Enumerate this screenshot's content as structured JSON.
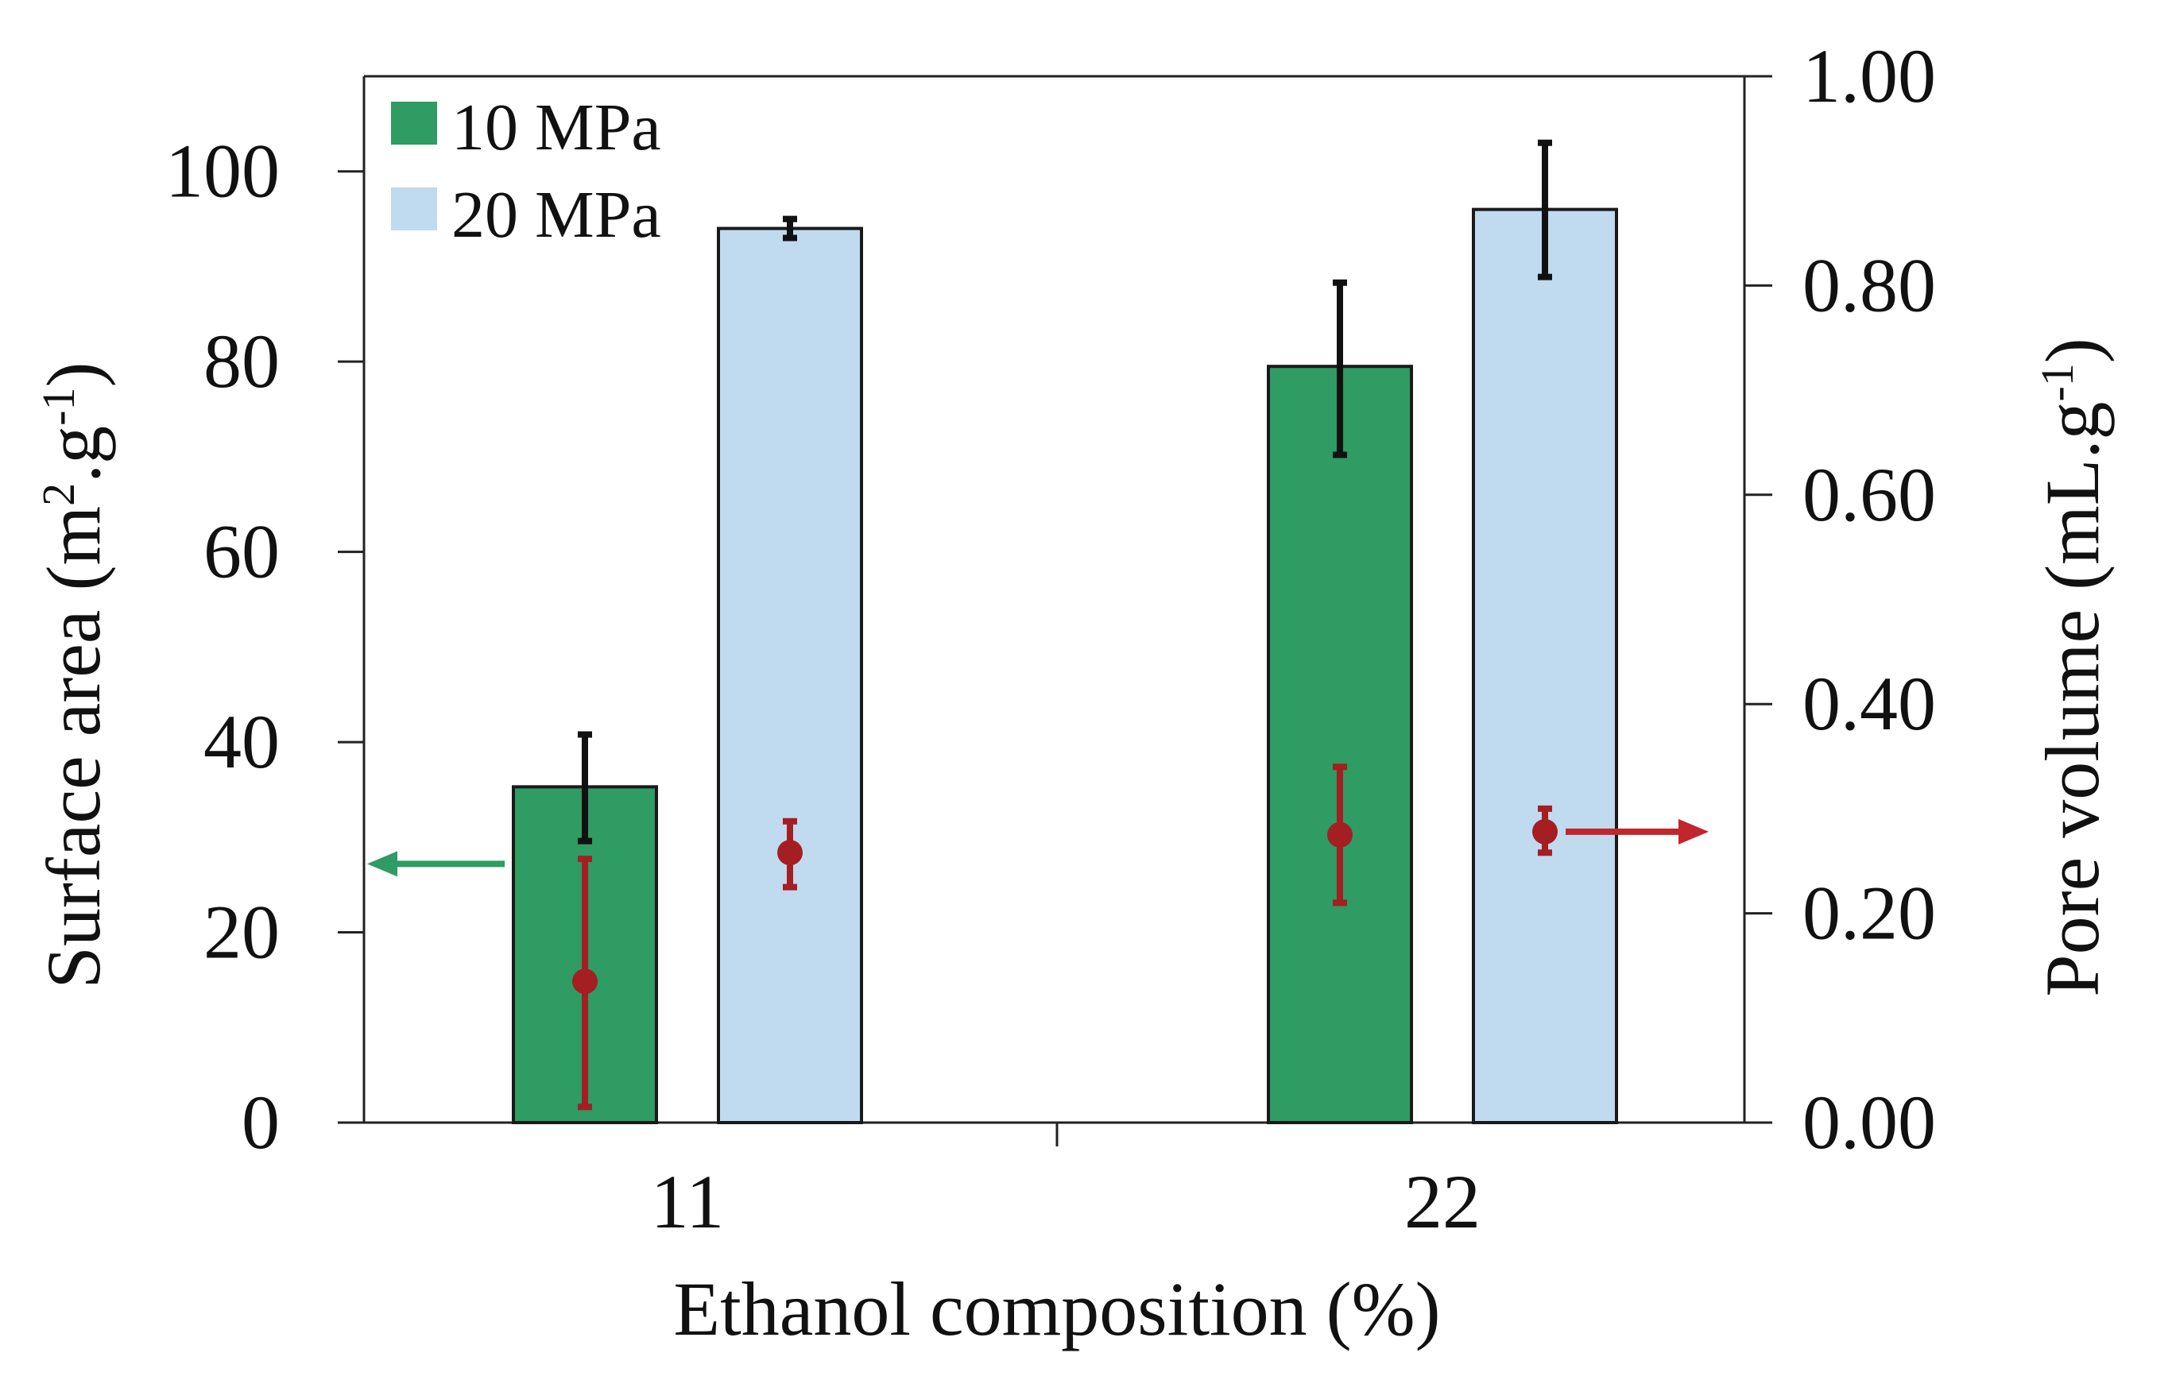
{
  "chart_data": {
    "type": "bar",
    "title": "",
    "xlabel": "Ethanol composition (%)",
    "ylabel": "Surface area (m",
    "ylabel_sup1": "2",
    "ylabel_mid": ".g",
    "ylabel_sup2": "-1",
    "ylabel_end": ")",
    "y2label": "Pore volume (mL.g",
    "y2label_sup": "-1",
    "y2label_end": ")",
    "categories": [
      "11",
      "22"
    ],
    "ylim": [
      0,
      110
    ],
    "y_ticks": [
      0,
      20,
      40,
      60,
      80,
      100
    ],
    "y2lim": [
      0,
      1.0
    ],
    "y2_ticks": [
      "0.00",
      "0.20",
      "0.40",
      "0.60",
      "0.80",
      "1.00"
    ],
    "series": [
      {
        "name": "10 MPa",
        "color": "#2e9c63",
        "values": [
          35.3,
          79.5
        ],
        "error_low": [
          29.6,
          70.2
        ],
        "error_high": [
          40.8,
          88.3
        ],
        "pore_volume": [
          0.135,
          0.275
        ],
        "pore_volume_low": [
          0.015,
          0.21
        ],
        "pore_volume_high": [
          0.252,
          0.34
        ]
      },
      {
        "name": "20 MPa",
        "color": "#c0daf0",
        "values": [
          94.0,
          96.0
        ],
        "error_low": [
          93.0,
          88.9
        ],
        "error_high": [
          95.0,
          103.0
        ],
        "pore_volume": [
          0.258,
          0.278
        ],
        "pore_volume_low": [
          0.225,
          0.258
        ],
        "pore_volume_high": [
          0.288,
          0.3
        ]
      }
    ],
    "bar_error_color": "#111111",
    "pore_marker_color": "#a51e22",
    "left_arrow_color": "#2e9c63",
    "right_arrow_color": "#c0262c",
    "legend_position": "top-left"
  }
}
